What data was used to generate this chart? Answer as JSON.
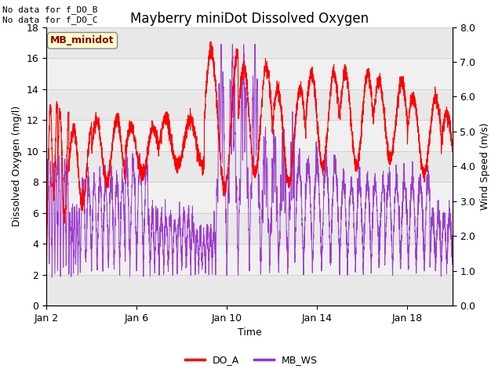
{
  "title": "Mayberry miniDot Dissolved Oxygen",
  "ylabel_left": "Dissolved Oxygen (mg/l)",
  "ylabel_right": "Wind Speed (m/s)",
  "xlabel": "Time",
  "ylim_left": [
    0,
    18
  ],
  "ylim_right": [
    0.0,
    8.0
  ],
  "yticks_left": [
    0,
    2,
    4,
    6,
    8,
    10,
    12,
    14,
    16,
    18
  ],
  "yticks_right": [
    0.0,
    1.0,
    2.0,
    3.0,
    4.0,
    5.0,
    6.0,
    7.0,
    8.0
  ],
  "xtick_labels": [
    "Jan 2",
    "Jan 6",
    "Jan 10",
    "Jan 14",
    "Jan 18"
  ],
  "xtick_positions": [
    0,
    4,
    8,
    12,
    16
  ],
  "no_data_text1": "No data for f_DO_B",
  "no_data_text2": "No data for f_DO_C",
  "legend_box_label": "MB_minidot",
  "legend_items": [
    "DO_A",
    "MB_WS"
  ],
  "do_color": "#ff0000",
  "ws_color": "#9933cc",
  "band_color": "#e8e8e8",
  "bg_color": "#f0f0f0",
  "plot_bg": "#ffffff",
  "grid_color": "#d0d0d0",
  "title_fontsize": 12,
  "axis_label_fontsize": 9,
  "tick_fontsize": 9,
  "legend_fontsize": 9,
  "nodata_fontsize": 8
}
